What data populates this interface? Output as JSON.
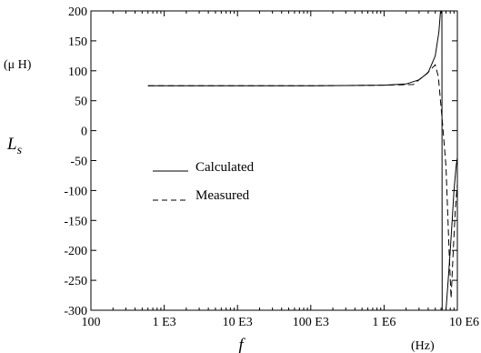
{
  "chart_data": {
    "type": "line",
    "xscale": "log",
    "xlim": [
      100,
      10000000
    ],
    "ylim": [
      -300,
      200
    ],
    "ylabel": "L_s",
    "ylabel_main": "L",
    "ylabel_sub": "s",
    "y_unit": "(μ H)",
    "xlabel": "f",
    "x_unit": "(Hz)",
    "grid": false,
    "legend_position": "left-middle",
    "x_ticks": [
      {
        "value": 100,
        "label": "100"
      },
      {
        "value": 1000,
        "label": "1 E3"
      },
      {
        "value": 10000,
        "label": "10 E3"
      },
      {
        "value": 100000,
        "label": "100 E3"
      },
      {
        "value": 1000000,
        "label": "1 E6"
      },
      {
        "value": 10000000,
        "label": "10 E6"
      }
    ],
    "y_ticks": [
      200,
      150,
      100,
      50,
      0,
      -50,
      -100,
      -150,
      -200,
      -250,
      -300
    ],
    "series": [
      {
        "name": "Calculated",
        "style": "solid",
        "x": [
          600,
          10000,
          100000,
          1000000,
          2000000,
          3000000,
          4000000,
          5000000,
          5600000,
          5900000,
          6050000,
          6150000,
          6200000,
          7000000,
          7500000,
          8000000,
          8500000,
          9000000,
          9600000,
          10000000
        ],
        "y": [
          75,
          75,
          75,
          76,
          78,
          85,
          97,
          125,
          165,
          200,
          200,
          200,
          -300,
          -300,
          -250,
          -200,
          -150,
          -100,
          -60,
          -45
        ]
      },
      {
        "name": "Measured",
        "style": "dashed",
        "x": [
          600,
          10000,
          100000,
          1000000,
          2500000,
          3800000,
          5000000,
          5500000,
          6300000,
          7000000,
          7700000,
          8200000,
          8800000,
          9400000,
          10000000
        ],
        "y": [
          75,
          75,
          75,
          76,
          77,
          95,
          110,
          90,
          10,
          -60,
          -200,
          -280,
          -200,
          -130,
          -90
        ]
      }
    ]
  }
}
